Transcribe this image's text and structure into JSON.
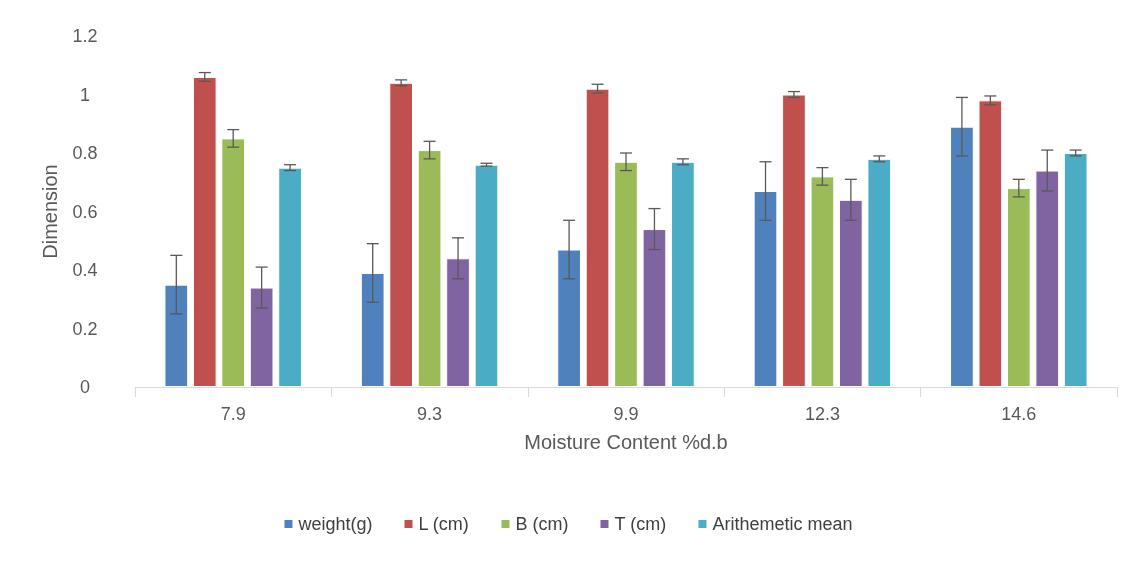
{
  "chart_data": {
    "type": "bar",
    "xlabel": "Moisture Content %d.b",
    "ylabel": "Dimension",
    "categories": [
      "7.9",
      "9.3",
      "9.9",
      "12.3",
      "14.6"
    ],
    "series": [
      {
        "name": "weight(g)",
        "color": "#4f81bd",
        "values": [
          0.35,
          0.39,
          0.47,
          0.67,
          0.89
        ],
        "errors": [
          0.1,
          0.1,
          0.1,
          0.1,
          0.1
        ]
      },
      {
        "name": "L (cm)",
        "color": "#c0504d",
        "values": [
          1.06,
          1.04,
          1.02,
          1.0,
          0.98
        ],
        "errors": [
          0.015,
          0.01,
          0.015,
          0.01,
          0.015
        ]
      },
      {
        "name": "B (cm)",
        "color": "#9bbb59",
        "values": [
          0.85,
          0.81,
          0.77,
          0.72,
          0.68
        ],
        "errors": [
          0.03,
          0.03,
          0.03,
          0.03,
          0.03
        ]
      },
      {
        "name": "T (cm)",
        "color": "#8064a2",
        "values": [
          0.34,
          0.44,
          0.54,
          0.64,
          0.74
        ],
        "errors": [
          0.07,
          0.07,
          0.07,
          0.07,
          0.07
        ]
      },
      {
        "name": "Arithemetic mean",
        "color": "#4bacc6",
        "values": [
          0.75,
          0.76,
          0.77,
          0.78,
          0.8
        ],
        "errors": [
          0.01,
          0.005,
          0.01,
          0.01,
          0.01
        ]
      }
    ],
    "ylim": [
      0,
      1.2
    ],
    "yticks": [
      0,
      0.2,
      0.4,
      0.6,
      0.8,
      1,
      1.2
    ],
    "grid": false,
    "legend": "bottom"
  }
}
